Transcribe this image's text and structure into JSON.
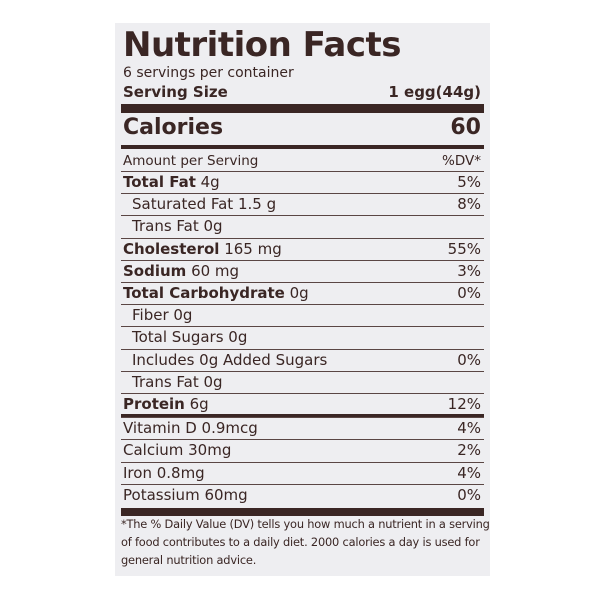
{
  "label": {
    "title": "Nutrition Facts",
    "servings": "6 servings per container",
    "serving_size_label": "Serving Size",
    "serving_size_value": "1 egg(44g)",
    "calories_label": "Calories",
    "calories_value": "60",
    "amount_per_serving": "Amount per Serving",
    "dv_header": "%DV*",
    "rows": [
      {
        "bold": "Total Fat",
        "rest": " 4g",
        "dv": "5%",
        "indent": false
      },
      {
        "bold": "",
        "rest": "Saturated Fat 1.5 g",
        "dv": "8%",
        "indent": true
      },
      {
        "bold": "",
        "rest": "Trans Fat 0g",
        "dv": "",
        "indent": true
      },
      {
        "bold": "Cholesterol",
        "rest": " 165 mg",
        "dv": "55%",
        "indent": false
      },
      {
        "bold": "Sodium",
        "rest": " 60 mg",
        "dv": "3%",
        "indent": false
      },
      {
        "bold": "Total Carbohydrate",
        "rest": " 0g",
        "dv": "0%",
        "indent": false
      },
      {
        "bold": "",
        "rest": "Fiber 0g",
        "dv": "",
        "indent": true
      },
      {
        "bold": "",
        "rest": "Total Sugars 0g",
        "dv": "",
        "indent": true
      },
      {
        "bold": "",
        "rest": "Includes 0g Added Sugars",
        "dv": "0%",
        "indent": true
      },
      {
        "bold": "",
        "rest": "Trans Fat 0g",
        "dv": "",
        "indent": true
      },
      {
        "bold": "Protein",
        "rest": " 6g",
        "dv": "12%",
        "indent": false
      },
      {
        "bold": "",
        "rest": "Vitamin D 0.9mcg",
        "dv": "4%",
        "indent": false
      },
      {
        "bold": "",
        "rest": "Calcium 30mg",
        "dv": "2%",
        "indent": false
      },
      {
        "bold": "",
        "rest": "Iron 0.8mg",
        "dv": "4%",
        "indent": false
      },
      {
        "bold": "",
        "rest": "Potassium 60mg",
        "dv": "0%",
        "indent": false
      }
    ],
    "footnote": [
      "*The % Daily Value (DV) tells you how much a nutrient in a serving",
      "of food contributes to a daily diet. 2000 calories a day is used for",
      "general nutrition advice."
    ]
  },
  "colors": {
    "ink": "#3a2624",
    "panel": "#eeeef1"
  }
}
